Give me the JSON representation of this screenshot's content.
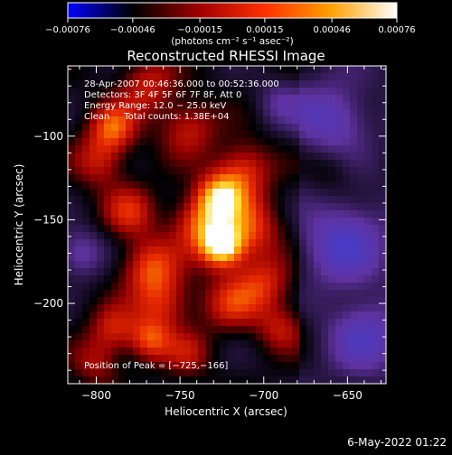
{
  "chart_data": {
    "type": "heatmap",
    "title": "Reconstructed RHESSI Image",
    "xlabel": "Heliocentric X (arcsec)",
    "ylabel": "Heliocentric Y (arcsec)",
    "xlim": [
      -817,
      -627
    ],
    "ylim": [
      -248,
      -58
    ],
    "xticks": [
      -800,
      -750,
      -700,
      -650
    ],
    "xtick_labels": [
      "−800",
      "−750",
      "−700",
      "−650"
    ],
    "yticks": [
      -100,
      -150,
      -200
    ],
    "ytick_labels": [
      "−100",
      "−150",
      "−200"
    ],
    "colorbar": {
      "range": [
        -0.00076,
        0.00076
      ],
      "ticks": [
        -0.00076,
        -0.00046,
        -0.00015,
        0.00015,
        0.00046,
        0.00076
      ],
      "tick_labels": [
        "−0.00076",
        "−0.00046",
        "−0.00015",
        "0.00015",
        "0.00046",
        "0.00076"
      ],
      "unit_label": "(photons cm⁻² s⁻¹ asec⁻²)",
      "stops": [
        "#0000ff",
        "#000000",
        "#a00000",
        "#ff3000",
        "#ffa000",
        "#ffffff"
      ]
    },
    "peak": {
      "x": -725,
      "y": -166
    },
    "sources": [
      {
        "x": -725,
        "y": -166,
        "r": 9,
        "amp": 1.0
      },
      {
        "x": -726,
        "y": -136,
        "r": 10,
        "amp": 0.78
      },
      {
        "x": -712,
        "y": -120,
        "r": 12,
        "amp": 0.55
      },
      {
        "x": -738,
        "y": -152,
        "r": 12,
        "amp": 0.62
      },
      {
        "x": -708,
        "y": -155,
        "r": 13,
        "amp": 0.55
      },
      {
        "x": -790,
        "y": -95,
        "r": 10,
        "amp": 0.62
      },
      {
        "x": -798,
        "y": -115,
        "r": 11,
        "amp": 0.45
      },
      {
        "x": -768,
        "y": -178,
        "r": 12,
        "amp": 0.58
      },
      {
        "x": -760,
        "y": -200,
        "r": 12,
        "amp": 0.5
      },
      {
        "x": -780,
        "y": -145,
        "r": 11,
        "amp": 0.48
      },
      {
        "x": -770,
        "y": -70,
        "r": 12,
        "amp": 0.45
      },
      {
        "x": -745,
        "y": -95,
        "r": 12,
        "amp": 0.45
      },
      {
        "x": -700,
        "y": -188,
        "r": 12,
        "amp": 0.48
      },
      {
        "x": -690,
        "y": -215,
        "r": 10,
        "amp": 0.4
      },
      {
        "x": -720,
        "y": -200,
        "r": 12,
        "amp": 0.45
      },
      {
        "x": -790,
        "y": -215,
        "r": 10,
        "amp": 0.45
      },
      {
        "x": -768,
        "y": -222,
        "r": 9,
        "amp": 0.55
      },
      {
        "x": -800,
        "y": -235,
        "r": 10,
        "amp": 0.35
      },
      {
        "x": -745,
        "y": -230,
        "r": 10,
        "amp": 0.35
      },
      {
        "x": -652,
        "y": -165,
        "r": 16,
        "amp": -0.7
      },
      {
        "x": -660,
        "y": -90,
        "r": 14,
        "amp": -0.55
      },
      {
        "x": -640,
        "y": -220,
        "r": 14,
        "amp": -0.6
      },
      {
        "x": -810,
        "y": -170,
        "r": 10,
        "amp": -0.5
      },
      {
        "x": -690,
        "y": -80,
        "r": 10,
        "amp": -0.35
      },
      {
        "x": -660,
        "y": -120,
        "r": 10,
        "amp": 0.2
      }
    ]
  },
  "annotation": {
    "time": "28-Apr-2007 00:46:36.000 to 00:52:36.000",
    "detectors": "Detectors: 3F 4F 5F 6F 7F 8F, Att 0",
    "energy": "Energy Range: 12.0 − 25.0 keV",
    "clean": "Clean     Total counts: 1.38E+04",
    "peak": "Position of Peak = [−725,−166]"
  },
  "footer": {
    "timestamp": "6-May-2022 01:22"
  }
}
